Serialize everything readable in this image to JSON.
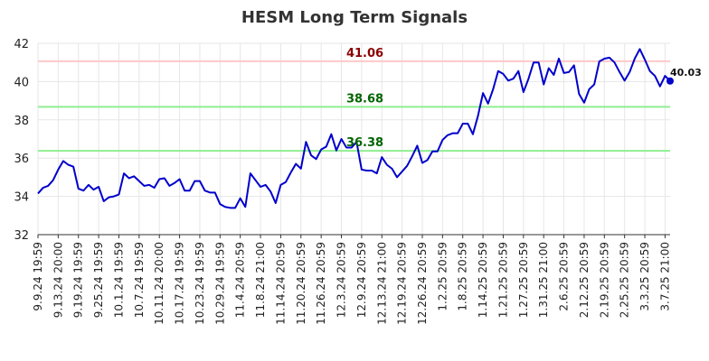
{
  "chart_data": {
    "type": "line",
    "title": "HESM Long Term Signals",
    "xlabel": "",
    "ylabel": "",
    "ylim": [
      32,
      42
    ],
    "yticks": [
      "32",
      "34",
      "36",
      "38",
      "40",
      "42"
    ],
    "grid": true,
    "xtick_labels": [
      "9.9.24 19:59",
      "9.13.24 20:00",
      "9.19.24 19:59",
      "9.25.24 19:59",
      "10.1.24 19:59",
      "10.7.24 19:59",
      "10.11.24 20:00",
      "10.17.24 19:59",
      "10.23.24 19:59",
      "10.29.24 19:59",
      "11.4.24 20:59",
      "11.8.24 21:00",
      "11.14.24 20:59",
      "11.20.24 20:59",
      "11.26.24 20:59",
      "12.3.24 20:59",
      "12.9.24 20:59",
      "12.13.24 21:00",
      "12.19.24 20:59",
      "12.26.24 20:59",
      "1.2.25 20:59",
      "1.8.25 20:59",
      "1.14.25 20:59",
      "1.21.25 20:59",
      "1.27.25 20:59",
      "1.31.25 21:00",
      "2.6.25 20:59",
      "2.12.25 20:59",
      "2.19.25 20:59",
      "2.25.25 20:59",
      "3.3.25 20:59",
      "3.7.25 21:00"
    ],
    "xtick_index": [
      0,
      4,
      8,
      12,
      16,
      20,
      24,
      28,
      32,
      36,
      40,
      44,
      48,
      52,
      56,
      60,
      64,
      68,
      72,
      76,
      80,
      84,
      88,
      92,
      96,
      100,
      104,
      108,
      112,
      116,
      120,
      124
    ],
    "series": [
      {
        "color": "#0000cc",
        "values": [
          34.15,
          34.45,
          34.55,
          34.85,
          35.4,
          35.85,
          35.65,
          35.55,
          34.4,
          34.3,
          34.6,
          34.35,
          34.5,
          33.75,
          33.95,
          34.0,
          34.1,
          35.2,
          34.95,
          35.05,
          34.8,
          34.55,
          34.6,
          34.45,
          34.9,
          34.95,
          34.55,
          34.7,
          34.9,
          34.3,
          34.3,
          34.8,
          34.8,
          34.3,
          34.2,
          34.2,
          33.6,
          33.45,
          33.4,
          33.4,
          33.9,
          33.45,
          35.2,
          34.85,
          34.5,
          34.6,
          34.25,
          33.65,
          34.6,
          34.75,
          35.25,
          35.7,
          35.45,
          36.85,
          36.15,
          35.95,
          36.45,
          36.6,
          37.25,
          36.4,
          37.0,
          36.55,
          36.55,
          36.85,
          35.4,
          35.35,
          35.35,
          35.2,
          36.05,
          35.65,
          35.45,
          35.0,
          35.3,
          35.6,
          36.1,
          36.65,
          35.75,
          35.9,
          36.35,
          36.35,
          36.95,
          37.2,
          37.3,
          37.3,
          37.8,
          37.8,
          37.25,
          38.2,
          39.4,
          38.85,
          39.6,
          40.55,
          40.4,
          40.05,
          40.15,
          40.55,
          39.45,
          40.15,
          41.0,
          41.0,
          39.85,
          40.7,
          40.35,
          41.2,
          40.45,
          40.5,
          40.85,
          39.35,
          38.9,
          39.6,
          39.85,
          41.05,
          41.2,
          41.25,
          41.0,
          40.5,
          40.05,
          40.5,
          41.2,
          41.7,
          41.15,
          40.55,
          40.3,
          39.75,
          40.3,
          40.03
        ]
      }
    ],
    "levels": [
      {
        "value": 41.06,
        "label": "41.06",
        "line_color": "#ffc8c8",
        "text_color": "#8b0000"
      },
      {
        "value": 38.68,
        "label": "38.68",
        "line_color": "#90ee90",
        "text_color": "#006400"
      },
      {
        "value": 36.38,
        "label": "36.38",
        "line_color": "#90ee90",
        "text_color": "#006400"
      }
    ],
    "last_point": {
      "value": 40.03,
      "label": "40.03",
      "color": "#0000cc"
    }
  }
}
